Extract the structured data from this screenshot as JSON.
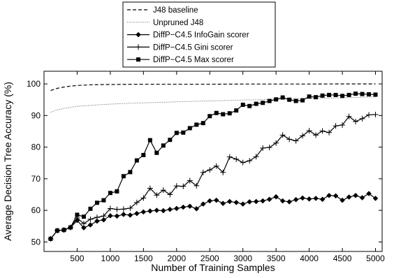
{
  "chart_data": {
    "type": "line",
    "title": "",
    "xlabel": "Number of Training Samples",
    "ylabel": "Average Decision Tree Accuracy (%)",
    "xlim": [
      0,
      5100
    ],
    "ylim": [
      47,
      104
    ],
    "xticks": [
      500,
      1000,
      1500,
      2000,
      2500,
      3000,
      3500,
      4000,
      4500,
      5000
    ],
    "yticks": [
      50,
      60,
      70,
      80,
      90,
      100
    ],
    "grid": false,
    "legend_position": "top-center-outside",
    "series": [
      {
        "name": "J48 baseline",
        "style": "dashed",
        "marker": "none",
        "color": "#000000",
        "x": [
          100,
          200,
          300,
          400,
          500,
          600,
          700,
          800,
          900,
          1000,
          1200,
          1500,
          2000,
          2500,
          3000,
          3500,
          4000,
          4500,
          5000
        ],
        "y": [
          97.9,
          98.6,
          99.0,
          99.3,
          99.5,
          99.6,
          99.7,
          99.75,
          99.8,
          99.8,
          99.85,
          99.9,
          99.9,
          99.9,
          99.95,
          99.95,
          99.95,
          100,
          100
        ]
      },
      {
        "name": "Unpruned J48",
        "style": "dotted",
        "marker": "none",
        "color": "#555555",
        "x": [
          100,
          200,
          300,
          400,
          500,
          700,
          900,
          1200,
          1500,
          1800,
          2100,
          2500,
          3000,
          3500,
          4000,
          4500,
          5000
        ],
        "y": [
          91.0,
          91.8,
          92.2,
          92.6,
          92.9,
          93.2,
          93.5,
          93.8,
          94.0,
          94.2,
          94.4,
          94.6,
          94.9,
          95.1,
          95.4,
          95.6,
          95.9
        ]
      },
      {
        "name": "DiffP−C4.5 InfoGain scorer",
        "style": "solid",
        "marker": "diamond",
        "color": "#000000",
        "x": [
          100,
          200,
          300,
          400,
          500,
          600,
          700,
          800,
          900,
          1000,
          1100,
          1200,
          1300,
          1400,
          1500,
          1600,
          1700,
          1800,
          1900,
          2000,
          2100,
          2200,
          2300,
          2400,
          2500,
          2600,
          2700,
          2800,
          2900,
          3000,
          3100,
          3200,
          3300,
          3400,
          3500,
          3600,
          3700,
          3800,
          3900,
          4000,
          4100,
          4200,
          4300,
          4400,
          4500,
          4600,
          4700,
          4800,
          4900,
          5000
        ],
        "y": [
          51.0,
          53.6,
          53.8,
          54.6,
          56.8,
          54.5,
          55.4,
          56.6,
          57.0,
          58.3,
          58.2,
          58.7,
          58.5,
          59.0,
          59.5,
          59.8,
          60.0,
          59.9,
          60.3,
          60.6,
          61.0,
          61.3,
          60.5,
          62.0,
          63.0,
          63.2,
          62.2,
          62.8,
          62.5,
          62.0,
          62.7,
          62.8,
          63.0,
          63.5,
          64.3,
          63.0,
          62.7,
          63.4,
          63.9,
          63.6,
          63.8,
          63.5,
          64.7,
          64.6,
          63.2,
          64.2,
          64.7,
          64.0,
          65.3,
          63.8
        ]
      },
      {
        "name": "DiffP−C4.5 Gini scorer",
        "style": "solid",
        "marker": "plus",
        "color": "#000000",
        "x": [
          100,
          200,
          300,
          400,
          500,
          600,
          700,
          800,
          900,
          1000,
          1100,
          1200,
          1300,
          1400,
          1500,
          1600,
          1700,
          1800,
          1900,
          2000,
          2100,
          2200,
          2300,
          2400,
          2500,
          2600,
          2700,
          2800,
          2900,
          3000,
          3100,
          3200,
          3300,
          3400,
          3500,
          3600,
          3700,
          3800,
          3900,
          4000,
          4100,
          4200,
          4300,
          4400,
          4500,
          4600,
          4700,
          4800,
          4900,
          5000
        ],
        "y": [
          51.0,
          53.6,
          53.8,
          54.6,
          57.6,
          55.8,
          57.2,
          57.8,
          58.2,
          60.6,
          60.3,
          60.4,
          60.7,
          62.5,
          63.9,
          67.0,
          64.8,
          66.4,
          65.0,
          67.7,
          67.6,
          69.4,
          67.8,
          72.0,
          72.8,
          74.0,
          72.0,
          76.9,
          76.2,
          75.1,
          75.7,
          77.0,
          79.7,
          79.9,
          81.3,
          83.8,
          82.5,
          82.0,
          83.6,
          85.2,
          83.8,
          85.1,
          84.6,
          86.7,
          87.0,
          89.7,
          88.1,
          89.0,
          90.2,
          90.3
        ]
      },
      {
        "name": "DiffP−C4.5 Max scorer",
        "style": "solid",
        "marker": "square",
        "color": "#000000",
        "x": [
          100,
          200,
          300,
          400,
          500,
          600,
          700,
          800,
          900,
          1000,
          1100,
          1200,
          1300,
          1400,
          1500,
          1600,
          1700,
          1800,
          1900,
          2000,
          2100,
          2200,
          2300,
          2400,
          2500,
          2600,
          2700,
          2800,
          2900,
          3000,
          3100,
          3200,
          3300,
          3400,
          3500,
          3600,
          3700,
          3800,
          3900,
          4000,
          4100,
          4200,
          4300,
          4400,
          4500,
          4600,
          4700,
          4800,
          4900,
          5000
        ],
        "y": [
          51.0,
          53.6,
          53.8,
          54.6,
          58.6,
          58.0,
          60.5,
          62.4,
          63.2,
          65.5,
          66.0,
          70.8,
          72.1,
          75.8,
          77.5,
          82.2,
          78.2,
          80.5,
          82.3,
          84.5,
          84.6,
          86.0,
          87.1,
          87.6,
          89.8,
          90.8,
          90.4,
          90.7,
          91.6,
          93.4,
          93.0,
          93.7,
          94.0,
          94.6,
          95.1,
          95.7,
          95.0,
          94.6,
          94.8,
          96.0,
          95.8,
          96.3,
          96.5,
          96.5,
          96.2,
          96.5,
          96.9,
          96.8,
          96.7,
          96.6
        ]
      }
    ]
  }
}
